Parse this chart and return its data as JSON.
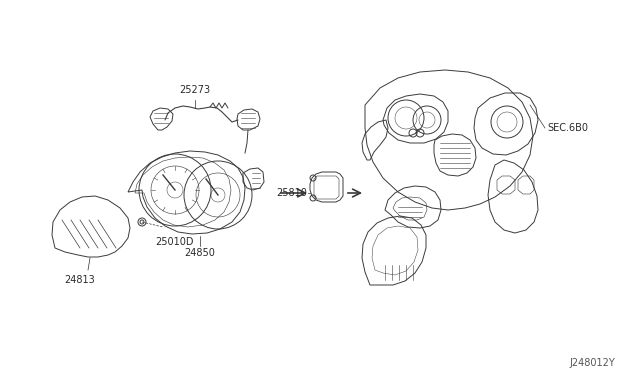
{
  "bg_color": "#ffffff",
  "line_color": "#3a3a3a",
  "text_color": "#2a2a2a",
  "diagram_id": "J248012Y",
  "lw": 0.7,
  "figsize": [
    6.4,
    3.72
  ],
  "dpi": 100,
  "xlim": [
    0,
    640
  ],
  "ylim": [
    0,
    372
  ]
}
